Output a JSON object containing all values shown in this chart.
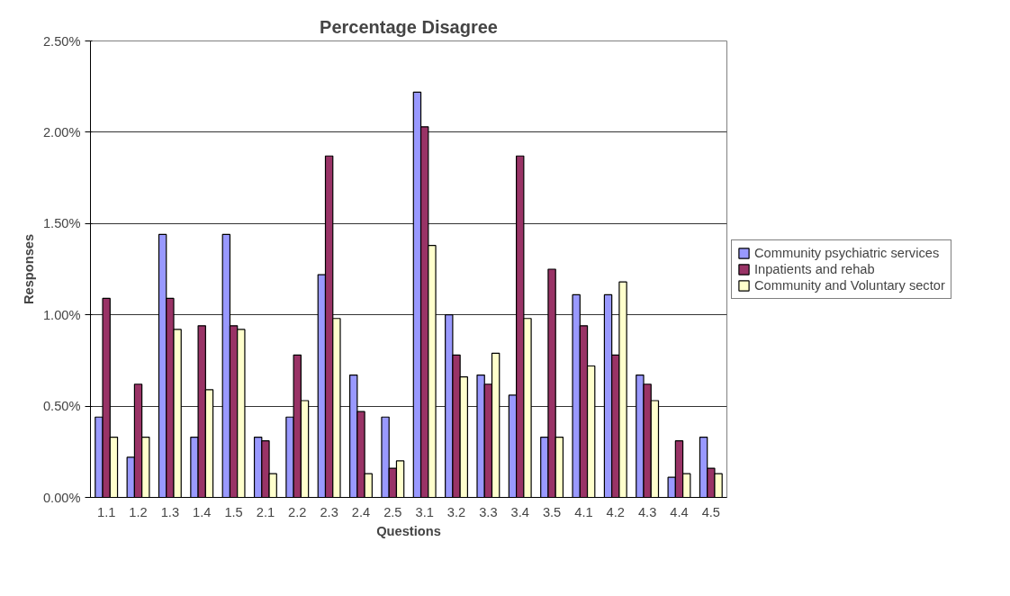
{
  "chart_data": {
    "type": "bar",
    "title": "Percentage Disagree",
    "xlabel": "Questions",
    "ylabel": "Responses",
    "categories": [
      "1.1",
      "1.2",
      "1.3",
      "1.4",
      "1.5",
      "2.1",
      "2.2",
      "2.3",
      "2.4",
      "2.5",
      "3.1",
      "3.2",
      "3.3",
      "3.4",
      "3.5",
      "4.1",
      "4.2",
      "4.3",
      "4.4",
      "4.5"
    ],
    "series": [
      {
        "name": "Community psychiatric services",
        "color": "#9999ff",
        "values": [
          0.44,
          0.22,
          1.44,
          0.33,
          1.44,
          0.33,
          0.44,
          1.22,
          0.67,
          0.44,
          2.22,
          1.0,
          0.67,
          0.56,
          0.33,
          1.11,
          1.11,
          0.67,
          0.11,
          0.33
        ]
      },
      {
        "name": "Inpatients and rehab",
        "color": "#993366",
        "values": [
          1.09,
          0.62,
          1.09,
          0.94,
          0.94,
          0.31,
          0.78,
          1.87,
          0.47,
          0.16,
          2.03,
          0.78,
          0.62,
          1.87,
          1.25,
          0.94,
          0.78,
          0.62,
          0.31,
          0.16
        ]
      },
      {
        "name": "Community and Voluntary sector",
        "color": "#ffffcc",
        "values": [
          0.33,
          0.33,
          0.92,
          0.59,
          0.92,
          0.13,
          0.53,
          0.98,
          0.13,
          0.2,
          1.38,
          0.66,
          0.79,
          0.98,
          0.33,
          0.72,
          1.18,
          0.53,
          0.13,
          0.13
        ]
      }
    ],
    "ylim": [
      0,
      2.5
    ],
    "yticks": [
      {
        "value": 0,
        "label": "0.00%"
      },
      {
        "value": 0.5,
        "label": "0.50%"
      },
      {
        "value": 1.0,
        "label": "1.00%"
      },
      {
        "value": 1.5,
        "label": "1.50%"
      },
      {
        "value": 2.0,
        "label": "2.00%"
      },
      {
        "value": 2.5,
        "label": "2.50%"
      }
    ],
    "grid": "y",
    "legend": "right"
  }
}
